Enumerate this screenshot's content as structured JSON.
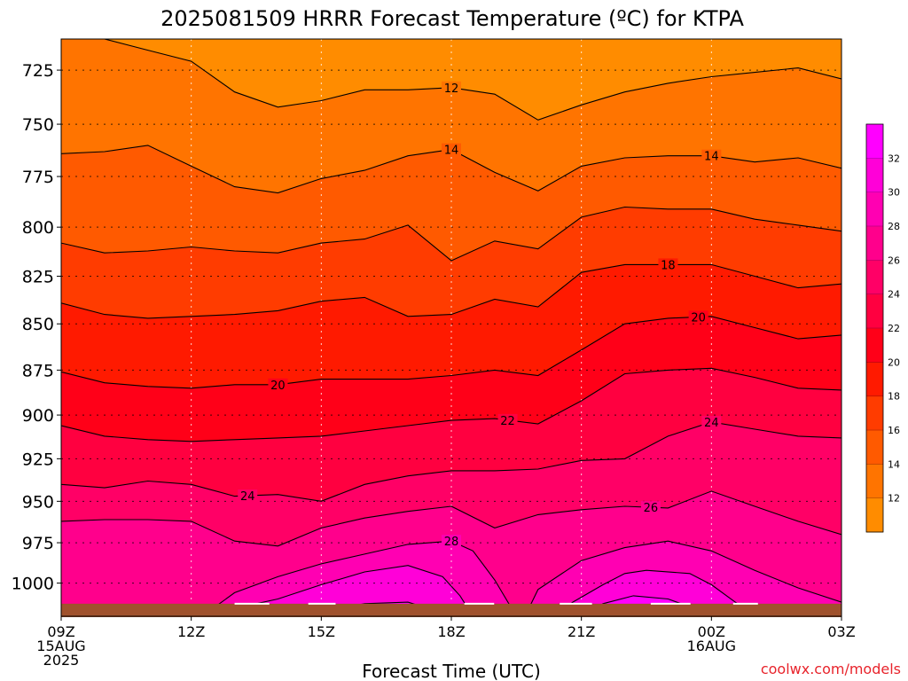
{
  "chart_data": {
    "type": "heatmap",
    "title": "2025081509 HRRR Forecast Temperature (ºC) for KTPA",
    "xlabel": "Forecast Time (UTC)",
    "ylabel": "",
    "credit": "coolwx.com/models",
    "x_ticks": [
      {
        "hour": 9,
        "lines": [
          "09Z",
          "15AUG",
          "2025"
        ]
      },
      {
        "hour": 12,
        "lines": [
          "12Z"
        ]
      },
      {
        "hour": 15,
        "lines": [
          "15Z"
        ]
      },
      {
        "hour": 18,
        "lines": [
          "18Z"
        ]
      },
      {
        "hour": 21,
        "lines": [
          "21Z"
        ]
      },
      {
        "hour": 24,
        "lines": [
          "00Z",
          "16AUG"
        ]
      },
      {
        "hour": 27,
        "lines": [
          "03Z"
        ]
      }
    ],
    "xlim": [
      9,
      27
    ],
    "y_ticks": [
      725,
      750,
      775,
      800,
      825,
      850,
      875,
      900,
      925,
      950,
      975,
      1000
    ],
    "ylim_hpa": [
      711,
      1021
    ],
    "y_inverted": true,
    "y_scale": "log-pressure",
    "colorbar": {
      "levels": [
        10,
        12,
        14,
        16,
        18,
        20,
        22,
        24,
        26,
        28,
        30,
        32,
        34
      ],
      "labels": [
        12,
        14,
        16,
        18,
        20,
        22,
        24,
        26,
        28,
        30,
        32
      ],
      "colors": [
        "#ff8c00",
        "#ff7400",
        "#ff5a00",
        "#ff3c00",
        "#ff1a00",
        "#ff0018",
        "#ff0040",
        "#ff0066",
        "#ff008c",
        "#ff00b2",
        "#ff00d8",
        "#ff00ff"
      ]
    },
    "contours": [
      {
        "value": 12,
        "label_hours": [
          18
        ],
        "points": [
          [
            9,
            710
          ],
          [
            10,
            711
          ],
          [
            11,
            716
          ],
          [
            12,
            721
          ],
          [
            13,
            735
          ],
          [
            14,
            742
          ],
          [
            15,
            739
          ],
          [
            16,
            734
          ],
          [
            17,
            734
          ],
          [
            18,
            733
          ],
          [
            19,
            736
          ],
          [
            20,
            748
          ],
          [
            21,
            741
          ],
          [
            22,
            735
          ],
          [
            23,
            731
          ],
          [
            24,
            728
          ],
          [
            25,
            726
          ],
          [
            26,
            724
          ],
          [
            27,
            729
          ]
        ]
      },
      {
        "value": 14,
        "label_hours": [
          18,
          24
        ],
        "points": [
          [
            9,
            764
          ],
          [
            10,
            763
          ],
          [
            11,
            760
          ],
          [
            12,
            770
          ],
          [
            13,
            780
          ],
          [
            14,
            783
          ],
          [
            15,
            776
          ],
          [
            16,
            772
          ],
          [
            17,
            765
          ],
          [
            18,
            762
          ],
          [
            19,
            773
          ],
          [
            20,
            782
          ],
          [
            21,
            770
          ],
          [
            22,
            766
          ],
          [
            23,
            765
          ],
          [
            24,
            765
          ],
          [
            25,
            768
          ],
          [
            26,
            766
          ],
          [
            27,
            771
          ]
        ]
      },
      {
        "value": 16,
        "label_hours": [],
        "points": [
          [
            9,
            808
          ],
          [
            10,
            813
          ],
          [
            11,
            812
          ],
          [
            12,
            810
          ],
          [
            13,
            812
          ],
          [
            14,
            813
          ],
          [
            15,
            808
          ],
          [
            16,
            806
          ],
          [
            17,
            799
          ],
          [
            18,
            817
          ],
          [
            19,
            807
          ],
          [
            20,
            811
          ],
          [
            21,
            795
          ],
          [
            22,
            790
          ],
          [
            23,
            791
          ],
          [
            24,
            791
          ],
          [
            25,
            796
          ],
          [
            26,
            799
          ],
          [
            27,
            802
          ]
        ]
      },
      {
        "value": 18,
        "label_hours": [
          23
        ],
        "points": [
          [
            9,
            839
          ],
          [
            10,
            845
          ],
          [
            11,
            847
          ],
          [
            12,
            846
          ],
          [
            13,
            845
          ],
          [
            14,
            843
          ],
          [
            15,
            838
          ],
          [
            16,
            836
          ],
          [
            17,
            846
          ],
          [
            18,
            845
          ],
          [
            19,
            837
          ],
          [
            20,
            841
          ],
          [
            21,
            823
          ],
          [
            22,
            819
          ],
          [
            23,
            819
          ],
          [
            24,
            819
          ],
          [
            25,
            825
          ],
          [
            26,
            831
          ],
          [
            27,
            829
          ]
        ]
      },
      {
        "value": 20,
        "label_hours": [
          14,
          23.7
        ],
        "points": [
          [
            9,
            876
          ],
          [
            10,
            882
          ],
          [
            11,
            884
          ],
          [
            12,
            885
          ],
          [
            13,
            883
          ],
          [
            14,
            883
          ],
          [
            15,
            880
          ],
          [
            16,
            880
          ],
          [
            17,
            880
          ],
          [
            18,
            878
          ],
          [
            19,
            875
          ],
          [
            20,
            878
          ],
          [
            21,
            864
          ],
          [
            22,
            850
          ],
          [
            23,
            847
          ],
          [
            24,
            846
          ],
          [
            25,
            852
          ],
          [
            26,
            858
          ],
          [
            27,
            856
          ]
        ]
      },
      {
        "value": 22,
        "label_hours": [
          19.3
        ],
        "points": [
          [
            9,
            906
          ],
          [
            10,
            912
          ],
          [
            11,
            914
          ],
          [
            12,
            915
          ],
          [
            13,
            914
          ],
          [
            14,
            913
          ],
          [
            15,
            912
          ],
          [
            16,
            909
          ],
          [
            17,
            906
          ],
          [
            18,
            903
          ],
          [
            19,
            902
          ],
          [
            20,
            905
          ],
          [
            21,
            892
          ],
          [
            22,
            877
          ],
          [
            23,
            875
          ],
          [
            24,
            874
          ],
          [
            25,
            879
          ],
          [
            26,
            885
          ],
          [
            27,
            886
          ]
        ]
      },
      {
        "value": 24,
        "label_hours": [
          13.3,
          24
        ],
        "points": [
          [
            9,
            940
          ],
          [
            10,
            942
          ],
          [
            11,
            938
          ],
          [
            12,
            940
          ],
          [
            13,
            947
          ],
          [
            14,
            946
          ],
          [
            15,
            950
          ],
          [
            16,
            940
          ],
          [
            17,
            935
          ],
          [
            18,
            932
          ],
          [
            19,
            932
          ],
          [
            20,
            931
          ],
          [
            21,
            926
          ],
          [
            22,
            925
          ],
          [
            23,
            912
          ],
          [
            24,
            904
          ],
          [
            25,
            908
          ],
          [
            26,
            912
          ],
          [
            27,
            913
          ]
        ]
      },
      {
        "value": 26,
        "label_hours": [
          22.6
        ],
        "points": [
          [
            9,
            962
          ],
          [
            10,
            961
          ],
          [
            11,
            961
          ],
          [
            12,
            962
          ],
          [
            13,
            974
          ],
          [
            14,
            977
          ],
          [
            15,
            966
          ],
          [
            16,
            960
          ],
          [
            17,
            956
          ],
          [
            18,
            953
          ],
          [
            19,
            966
          ],
          [
            20,
            958
          ],
          [
            21,
            955
          ],
          [
            22,
            953
          ],
          [
            23,
            954
          ],
          [
            24,
            944
          ],
          [
            25,
            953
          ],
          [
            26,
            962
          ],
          [
            27,
            970
          ]
        ]
      },
      {
        "value": 28,
        "label_hours": [
          18
        ],
        "points": [
          [
            9,
            1021
          ],
          [
            11,
            1021
          ],
          [
            12,
            1021
          ],
          [
            12.5,
            1016
          ],
          [
            13,
            1006
          ],
          [
            14,
            996
          ],
          [
            15,
            988
          ],
          [
            16,
            982
          ],
          [
            17,
            976
          ],
          [
            18,
            974
          ],
          [
            18.5,
            980
          ],
          [
            19,
            998
          ],
          [
            19.5,
            1021
          ]
        ]
      },
      {
        "value": 28,
        "label_hours": [],
        "points": [
          [
            19.7,
            1021
          ],
          [
            20,
            1004
          ],
          [
            21,
            986
          ],
          [
            22,
            978
          ],
          [
            23,
            974
          ],
          [
            24,
            980
          ],
          [
            25,
            992
          ],
          [
            26,
            1003
          ],
          [
            27,
            1012
          ]
        ]
      },
      {
        "value": 30,
        "label_hours": [],
        "points": [
          [
            12.7,
            1021
          ],
          [
            13,
            1016
          ],
          [
            14,
            1010
          ],
          [
            15,
            1001
          ],
          [
            16,
            993
          ],
          [
            17,
            989
          ],
          [
            17.8,
            996
          ],
          [
            18.2,
            1008
          ],
          [
            18.5,
            1021
          ]
        ]
      },
      {
        "value": 30,
        "label_hours": [],
        "points": [
          [
            20.4,
            1021
          ],
          [
            20.8,
            1012
          ],
          [
            21.5,
            1001
          ],
          [
            22,
            994
          ],
          [
            22.5,
            992
          ],
          [
            23.5,
            994
          ],
          [
            24,
            1001
          ],
          [
            24.5,
            1011
          ],
          [
            25,
            1021
          ]
        ]
      },
      {
        "value": 32,
        "label_hours": [],
        "points": [
          [
            14,
            1021
          ],
          [
            15,
            1018
          ],
          [
            16,
            1013
          ],
          [
            17,
            1012
          ],
          [
            17.7,
            1018
          ],
          [
            17.8,
            1021
          ]
        ]
      },
      {
        "value": 32,
        "label_hours": [],
        "points": [
          [
            21,
            1021
          ],
          [
            21.5,
            1013
          ],
          [
            22.2,
            1008
          ],
          [
            23,
            1010
          ],
          [
            23.9,
            1019
          ],
          [
            24,
            1021
          ]
        ]
      }
    ],
    "surface": {
      "pressure_hpa": 1013,
      "color": "#a0522d"
    }
  }
}
